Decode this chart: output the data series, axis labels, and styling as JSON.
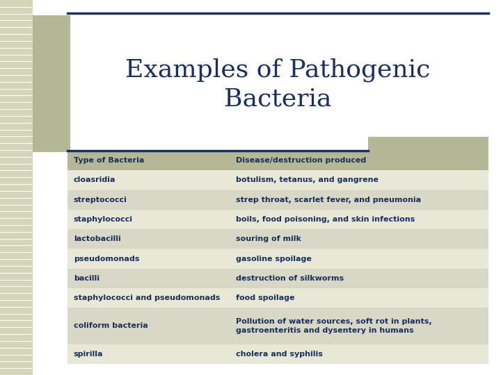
{
  "title": "Examples of Pathogenic\nBacteria",
  "title_color": "#1a2f5a",
  "background_color": "#ffffff",
  "header": [
    "Type of Bacteria",
    "Disease/destruction produced"
  ],
  "header_bg": "#b5b896",
  "header_text_color": "#1a2f5a",
  "rows": [
    [
      "cloasridia",
      "botulism, tetanus, and gangrene"
    ],
    [
      "streptococci",
      "strep throat, scarlet fever, and pneumonia"
    ],
    [
      "staphylococci",
      "boils, food poisoning, and skin infections"
    ],
    [
      "lactobacilli",
      "souring of milk"
    ],
    [
      "pseudomonads",
      "gasoline spoilage"
    ],
    [
      "bacilli",
      "destruction of silkworms"
    ],
    [
      "staphylococci and pseudomonads",
      "food spoilage"
    ],
    [
      "coliform bacteria",
      "Pollution of water sources, soft rot in plants,\ngastroenteritis and dysentery in humans"
    ],
    [
      "spirilla",
      "cholera and syphilis"
    ]
  ],
  "row_colors": [
    "#e8e8d8",
    "#d8d8c8"
  ],
  "row_text_color": "#1a2f5a",
  "accent_color": "#b5b896",
  "accent_dark": "#1a2f5a",
  "title_fontsize": 26,
  "header_fontsize": 8,
  "row_fontsize": 8,
  "stripe_color": "#c8c8b0",
  "stripe_line_color": "#ffffff"
}
